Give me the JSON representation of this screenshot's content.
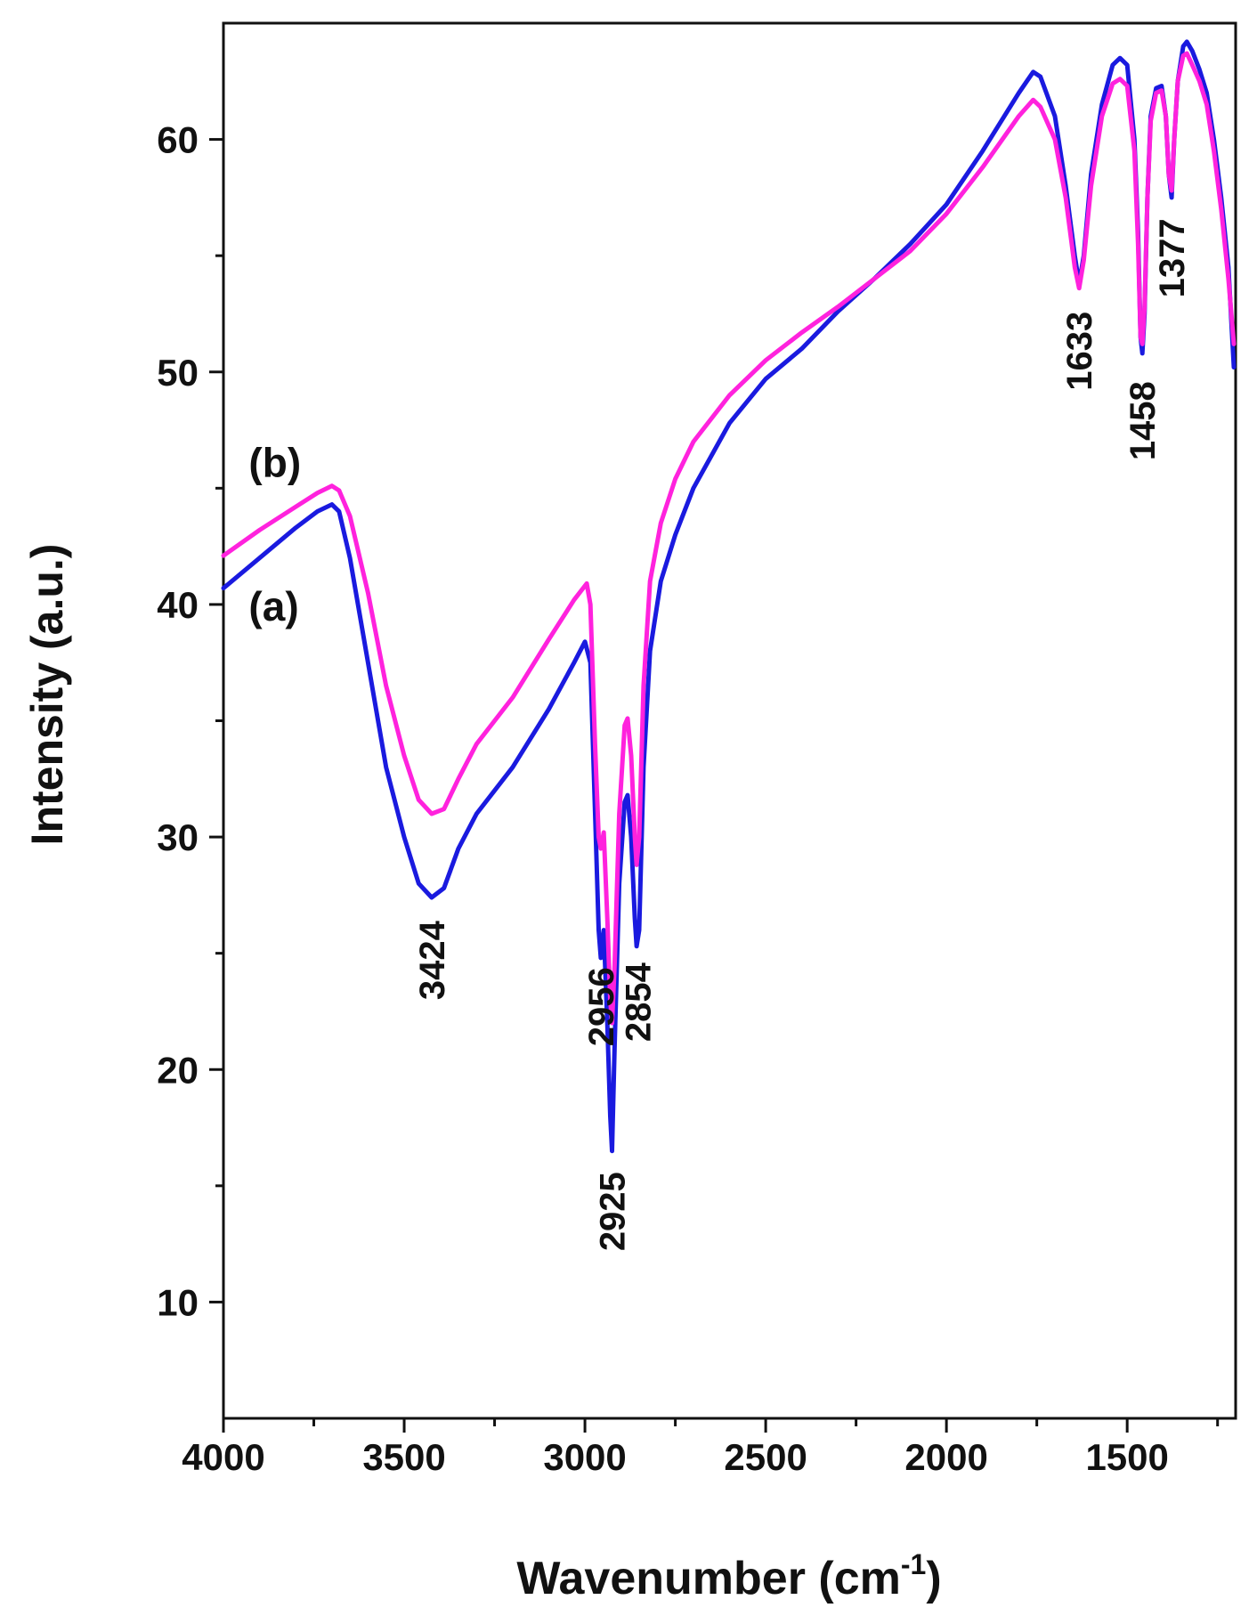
{
  "chart_data": {
    "type": "line",
    "title": "",
    "xlabel_main": "Wavenumber (cm",
    "xlabel_sup": "-1",
    "xlabel_close": ")",
    "ylabel": "Intensity (a.u.)",
    "xlim": [
      4000,
      1200
    ],
    "ylim": [
      5,
      65
    ],
    "x_ticks": [
      4000,
      3500,
      3000,
      2500,
      2000,
      1500
    ],
    "y_ticks": [
      10,
      20,
      30,
      40,
      50,
      60
    ],
    "series": [
      {
        "name": "(a)",
        "color": "#1a1adf",
        "points": [
          [
            4000,
            40.7
          ],
          [
            3900,
            42.0
          ],
          [
            3800,
            43.3
          ],
          [
            3740,
            44.0
          ],
          [
            3700,
            44.3
          ],
          [
            3680,
            44.0
          ],
          [
            3650,
            42.0
          ],
          [
            3600,
            37.5
          ],
          [
            3550,
            33.0
          ],
          [
            3500,
            30.0
          ],
          [
            3460,
            28.0
          ],
          [
            3424,
            27.4
          ],
          [
            3390,
            27.8
          ],
          [
            3350,
            29.5
          ],
          [
            3300,
            31.0
          ],
          [
            3200,
            33.0
          ],
          [
            3100,
            35.5
          ],
          [
            3030,
            37.5
          ],
          [
            3000,
            38.4
          ],
          [
            2985,
            37.5
          ],
          [
            2970,
            30.0
          ],
          [
            2962,
            26.0
          ],
          [
            2956,
            24.8
          ],
          [
            2948,
            26.0
          ],
          [
            2938,
            22.0
          ],
          [
            2930,
            18.0
          ],
          [
            2925,
            16.5
          ],
          [
            2918,
            21.0
          ],
          [
            2905,
            28.0
          ],
          [
            2890,
            31.5
          ],
          [
            2882,
            31.8
          ],
          [
            2872,
            30.0
          ],
          [
            2862,
            26.5
          ],
          [
            2857,
            25.3
          ],
          [
            2850,
            26.0
          ],
          [
            2838,
            33.0
          ],
          [
            2820,
            38.0
          ],
          [
            2790,
            41.0
          ],
          [
            2750,
            43.0
          ],
          [
            2700,
            45.0
          ],
          [
            2600,
            47.8
          ],
          [
            2500,
            49.7
          ],
          [
            2400,
            51.0
          ],
          [
            2300,
            52.6
          ],
          [
            2200,
            54.0
          ],
          [
            2100,
            55.5
          ],
          [
            2000,
            57.2
          ],
          [
            1900,
            59.5
          ],
          [
            1800,
            62.0
          ],
          [
            1760,
            62.9
          ],
          [
            1740,
            62.7
          ],
          [
            1700,
            61.0
          ],
          [
            1670,
            58.0
          ],
          [
            1645,
            55.0
          ],
          [
            1633,
            53.8
          ],
          [
            1620,
            55.0
          ],
          [
            1600,
            58.5
          ],
          [
            1570,
            61.5
          ],
          [
            1540,
            63.2
          ],
          [
            1520,
            63.5
          ],
          [
            1500,
            63.2
          ],
          [
            1480,
            60.0
          ],
          [
            1470,
            56.0
          ],
          [
            1463,
            51.5
          ],
          [
            1458,
            50.8
          ],
          [
            1452,
            52.5
          ],
          [
            1444,
            57.5
          ],
          [
            1435,
            61.0
          ],
          [
            1420,
            62.2
          ],
          [
            1405,
            62.3
          ],
          [
            1393,
            61.0
          ],
          [
            1385,
            58.5
          ],
          [
            1377,
            57.5
          ],
          [
            1370,
            60.0
          ],
          [
            1360,
            62.5
          ],
          [
            1345,
            64.0
          ],
          [
            1335,
            64.2
          ],
          [
            1320,
            63.8
          ],
          [
            1300,
            63.0
          ],
          [
            1280,
            62.0
          ],
          [
            1260,
            60.0
          ],
          [
            1240,
            57.5
          ],
          [
            1220,
            54.5
          ],
          [
            1205,
            50.2
          ]
        ]
      },
      {
        "name": "(b)",
        "color": "#ff22dd",
        "points": [
          [
            4000,
            42.1
          ],
          [
            3900,
            43.2
          ],
          [
            3800,
            44.2
          ],
          [
            3740,
            44.8
          ],
          [
            3700,
            45.1
          ],
          [
            3680,
            44.9
          ],
          [
            3650,
            43.8
          ],
          [
            3600,
            40.5
          ],
          [
            3550,
            36.5
          ],
          [
            3500,
            33.5
          ],
          [
            3460,
            31.6
          ],
          [
            3424,
            31.0
          ],
          [
            3390,
            31.2
          ],
          [
            3350,
            32.5
          ],
          [
            3300,
            34.0
          ],
          [
            3200,
            36.0
          ],
          [
            3100,
            38.5
          ],
          [
            3030,
            40.2
          ],
          [
            2995,
            40.9
          ],
          [
            2985,
            40.0
          ],
          [
            2972,
            34.0
          ],
          [
            2962,
            30.0
          ],
          [
            2956,
            29.5
          ],
          [
            2948,
            30.2
          ],
          [
            2938,
            26.5
          ],
          [
            2930,
            23.0
          ],
          [
            2925,
            22.0
          ],
          [
            2918,
            24.5
          ],
          [
            2905,
            31.0
          ],
          [
            2890,
            34.8
          ],
          [
            2882,
            35.1
          ],
          [
            2872,
            33.5
          ],
          [
            2862,
            30.0
          ],
          [
            2857,
            28.8
          ],
          [
            2850,
            30.0
          ],
          [
            2838,
            36.5
          ],
          [
            2820,
            41.0
          ],
          [
            2790,
            43.5
          ],
          [
            2750,
            45.4
          ],
          [
            2700,
            47.0
          ],
          [
            2600,
            49.0
          ],
          [
            2500,
            50.5
          ],
          [
            2400,
            51.7
          ],
          [
            2300,
            52.8
          ],
          [
            2200,
            54.0
          ],
          [
            2100,
            55.2
          ],
          [
            2000,
            56.8
          ],
          [
            1900,
            58.8
          ],
          [
            1800,
            61.0
          ],
          [
            1760,
            61.7
          ],
          [
            1740,
            61.4
          ],
          [
            1700,
            60.0
          ],
          [
            1670,
            57.5
          ],
          [
            1645,
            54.5
          ],
          [
            1633,
            53.6
          ],
          [
            1620,
            54.8
          ],
          [
            1600,
            58.0
          ],
          [
            1570,
            61.0
          ],
          [
            1540,
            62.4
          ],
          [
            1520,
            62.6
          ],
          [
            1500,
            62.3
          ],
          [
            1480,
            59.5
          ],
          [
            1470,
            55.5
          ],
          [
            1463,
            51.5
          ],
          [
            1458,
            51.2
          ],
          [
            1452,
            52.8
          ],
          [
            1444,
            57.5
          ],
          [
            1435,
            60.8
          ],
          [
            1420,
            62.0
          ],
          [
            1405,
            62.1
          ],
          [
            1393,
            61.0
          ],
          [
            1385,
            58.5
          ],
          [
            1377,
            57.8
          ],
          [
            1370,
            60.0
          ],
          [
            1360,
            62.5
          ],
          [
            1345,
            63.6
          ],
          [
            1335,
            63.7
          ],
          [
            1320,
            63.2
          ],
          [
            1300,
            62.5
          ],
          [
            1280,
            61.5
          ],
          [
            1260,
            59.5
          ],
          [
            1240,
            57.0
          ],
          [
            1220,
            54.0
          ],
          [
            1205,
            51.2
          ]
        ]
      }
    ],
    "series_labels": [
      {
        "text": "(a)",
        "x": 3930,
        "y": 39.3
      },
      {
        "text": "(b)",
        "x": 3930,
        "y": 45.5
      }
    ],
    "annotations": [
      {
        "text": "3424",
        "x": 3424,
        "y": 26.4
      },
      {
        "text": "2956",
        "x": 2956,
        "y": 24.4
      },
      {
        "text": "2925",
        "x": 2925,
        "y": 15.6
      },
      {
        "text": "2854",
        "x": 2854,
        "y": 24.6
      },
      {
        "text": "1633",
        "x": 1633,
        "y": 52.6
      },
      {
        "text": "1458",
        "x": 1458,
        "y": 49.6
      },
      {
        "text": "1377",
        "x": 1377,
        "y": 56.6
      }
    ]
  }
}
